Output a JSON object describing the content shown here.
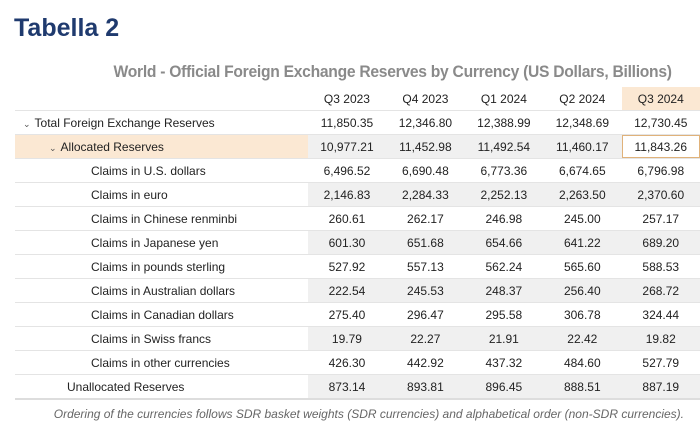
{
  "title": "Tabella 2",
  "subtitle": "World - Official Foreign Exchange Reserves by Currency (US Dollars, Billions)",
  "columns": [
    "Q3 2023",
    "Q4 2023",
    "Q1 2024",
    "Q2 2024",
    "Q3 2024"
  ],
  "rows": [
    {
      "label": "Total Foreign Exchange Reserves",
      "values": [
        "11,850.35",
        "12,346.80",
        "12,388.99",
        "12,348.69",
        "12,730.45"
      ]
    },
    {
      "label": "Allocated Reserves",
      "values": [
        "10,977.21",
        "11,452.98",
        "11,492.54",
        "11,460.17",
        "11,843.26"
      ]
    },
    {
      "label": "Claims in U.S. dollars",
      "values": [
        "6,496.52",
        "6,690.48",
        "6,773.36",
        "6,674.65",
        "6,796.98"
      ]
    },
    {
      "label": "Claims in euro",
      "values": [
        "2,146.83",
        "2,284.33",
        "2,252.13",
        "2,263.50",
        "2,370.60"
      ]
    },
    {
      "label": "Claims in Chinese renminbi",
      "values": [
        "260.61",
        "262.17",
        "246.98",
        "245.00",
        "257.17"
      ]
    },
    {
      "label": "Claims in Japanese yen",
      "values": [
        "601.30",
        "651.68",
        "654.66",
        "641.22",
        "689.20"
      ]
    },
    {
      "label": "Claims in pounds sterling",
      "values": [
        "527.92",
        "557.13",
        "562.24",
        "565.60",
        "588.53"
      ]
    },
    {
      "label": "Claims in Australian dollars",
      "values": [
        "222.54",
        "245.53",
        "248.37",
        "256.40",
        "268.72"
      ]
    },
    {
      "label": "Claims in Canadian dollars",
      "values": [
        "275.40",
        "296.47",
        "295.58",
        "306.78",
        "324.44"
      ]
    },
    {
      "label": "Claims in Swiss francs",
      "values": [
        "19.79",
        "22.27",
        "21.91",
        "22.42",
        "19.82"
      ]
    },
    {
      "label": "Claims in other currencies",
      "values": [
        "426.30",
        "442.92",
        "437.32",
        "484.60",
        "527.79"
      ]
    },
    {
      "label": "Unallocated Reserves",
      "values": [
        "873.14",
        "893.81",
        "896.45",
        "888.51",
        "887.19"
      ]
    }
  ],
  "footnote": "Ordering of the currencies follows SDR basket weights (SDR currencies) and alphabetical order (non-SDR currencies).",
  "colors": {
    "title": "#1f3a6e",
    "highlight": "#fbe8d3"
  }
}
